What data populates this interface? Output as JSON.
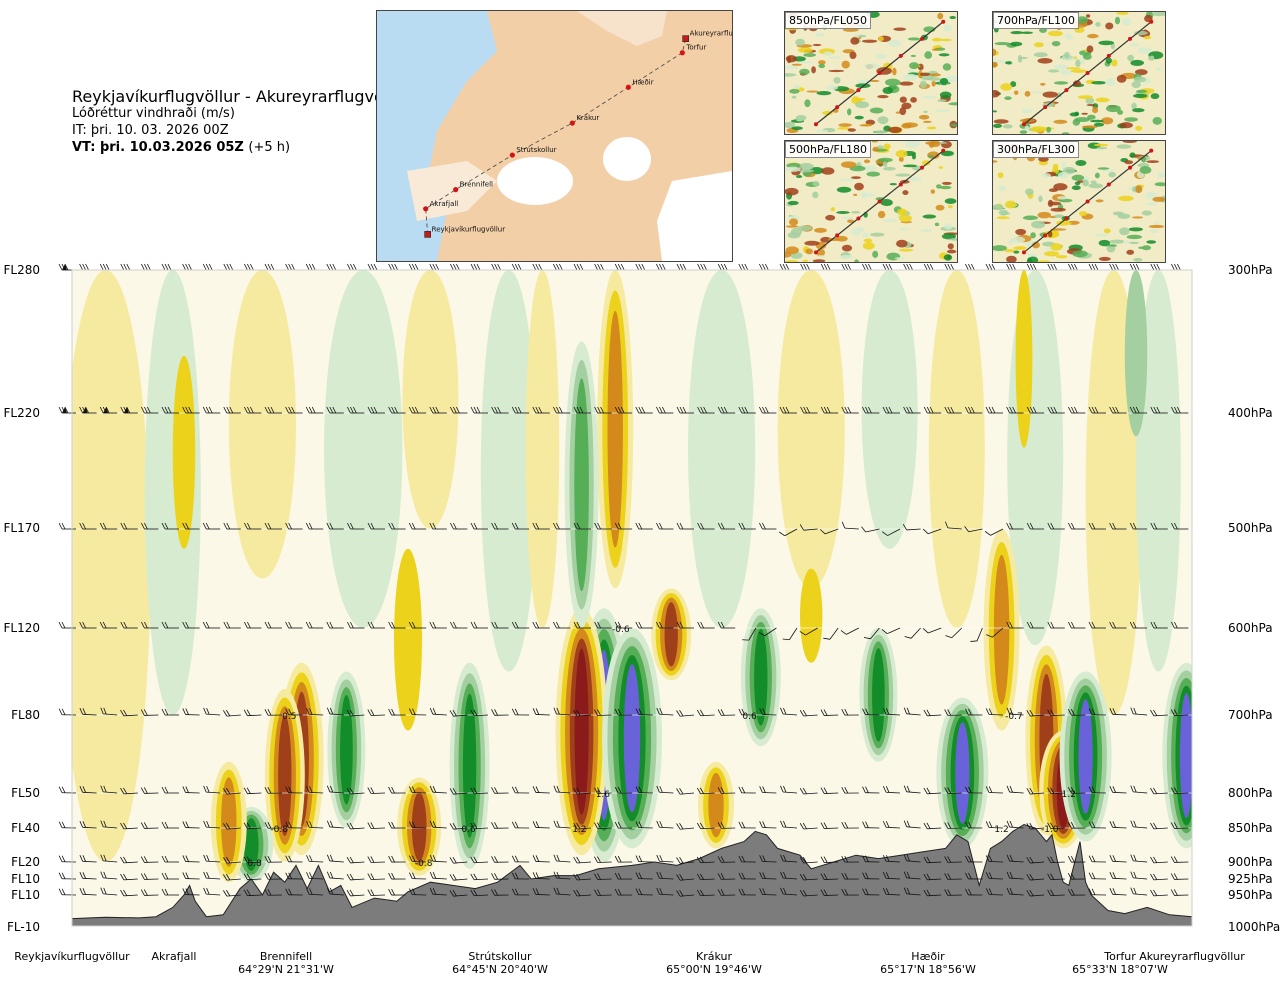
{
  "title": {
    "route": "Reykjavíkurflugvöllur - Akureyrarflugvöllur",
    "variable": "Lóðréttur vindhraði (m/s)",
    "init_time": "IT: þri. 10. 03. 2026 00Z",
    "valid_time": "VT: þri. 10.03.2026 05Z",
    "lead": "(+5 h)"
  },
  "map": {
    "places": [
      {
        "name": "Akureyrarflugvöllur",
        "lon": -18.07,
        "lat": 65.66
      },
      {
        "name": "Torfur",
        "lon": -18.12,
        "lat": 65.55
      },
      {
        "name": "Hæðir",
        "lon": -18.93,
        "lat": 65.28
      },
      {
        "name": "Krákur",
        "lon": -19.77,
        "lat": 65.0
      },
      {
        "name": "Strútskollur",
        "lon": -20.67,
        "lat": 64.75
      },
      {
        "name": "Brennifell",
        "lon": -21.52,
        "lat": 64.48
      },
      {
        "name": "Akrafjall",
        "lon": -21.97,
        "lat": 64.33
      },
      {
        "name": "Reykjavíkurflugvöllur",
        "lon": -21.94,
        "lat": 64.13
      }
    ]
  },
  "levels": [
    {
      "label": "850hPa/FL050"
    },
    {
      "label": "700hPa/FL100"
    },
    {
      "label": "500hPa/FL180"
    },
    {
      "label": "300hPa/FL300"
    }
  ],
  "axes": {
    "left": [
      {
        "fl": "FL280",
        "hpa": 300
      },
      {
        "fl": "FL220",
        "hpa": 400
      },
      {
        "fl": "FL170",
        "hpa": 500
      },
      {
        "fl": "FL120",
        "hpa": 600
      },
      {
        "fl": "FL80",
        "hpa": 700
      },
      {
        "fl": "FL50",
        "hpa": 800
      },
      {
        "fl": "FL40",
        "hpa": 850
      },
      {
        "fl": "FL20",
        "hpa": 900
      },
      {
        "fl": "FL10",
        "hpa": 925
      },
      {
        "fl": "FL10",
        "hpa": 950
      },
      {
        "fl": "FL-10",
        "hpa": 1000
      }
    ],
    "right": [
      "300hPa",
      "400hPa",
      "500hPa",
      "600hPa",
      "700hPa",
      "800hPa",
      "850hPa",
      "900hPa",
      "925hPa",
      "950hPa",
      "1000hPa"
    ]
  },
  "locations": [
    {
      "name": "Reykjavíkurflugvöllur",
      "coord": ""
    },
    {
      "name": "Akrafjall",
      "coord": ""
    },
    {
      "name": "Brennifell",
      "coord": "64°29'N 21°31'W"
    },
    {
      "name": "Strútskollur",
      "coord": "64°45'N 20°40'W"
    },
    {
      "name": "Krákur",
      "coord": "65°00'N 19°46'W"
    },
    {
      "name": "Hæðir",
      "coord": "65°17'N 18°56'W"
    },
    {
      "name": "Torfur",
      "coord": "65°33'N 18°07'W"
    },
    {
      "name": "Akureyrarflugvöllur",
      "coord": ""
    }
  ],
  "chart_data": {
    "type": "heatmap",
    "ylabel": "",
    "xlabel": "",
    "y_scale": "pressure",
    "ylim_hpa": [
      1000,
      300
    ],
    "x_range": [
      0,
      1
    ],
    "colors": {
      "strong_down": "#8b1a1a",
      "down2": "#a0401a",
      "down1": "#d48a1a",
      "weak_down": "#ecd21a",
      "faint_down": "#f6eaa0",
      "neutral": "#fbf8e8",
      "faint_up": "#d6ebd0",
      "weak_up": "#a4cfa0",
      "up1": "#56ae56",
      "up2": "#138c2a",
      "strong_up": "#6a62d8",
      "terrain": "#7c7c7c"
    },
    "cells": [
      {
        "x": 0.205,
        "p_top": 640,
        "p_bottom": 890,
        "value": -0.8
      },
      {
        "x": 0.19,
        "p_top": 670,
        "p_bottom": 900,
        "value": -0.6
      },
      {
        "x": 0.245,
        "p_top": 650,
        "p_bottom": 850,
        "value": 0.5
      },
      {
        "x": 0.16,
        "p_top": 820,
        "p_bottom": 930,
        "value": 0.8
      },
      {
        "x": 0.14,
        "p_top": 760,
        "p_bottom": 930,
        "value": -0.4
      },
      {
        "x": 0.31,
        "p_top": 780,
        "p_bottom": 920,
        "value": -0.8
      },
      {
        "x": 0.355,
        "p_top": 640,
        "p_bottom": 910,
        "value": 0.6
      },
      {
        "x": 0.475,
        "p_top": 580,
        "p_bottom": 900,
        "value": 1.2
      },
      {
        "x": 0.455,
        "p_top": 580,
        "p_bottom": 890,
        "value": -1.2
      },
      {
        "x": 0.5,
        "p_top": 600,
        "p_bottom": 880,
        "value": 1.6
      },
      {
        "x": 0.535,
        "p_top": 560,
        "p_bottom": 660,
        "value": -0.6
      },
      {
        "x": 0.485,
        "p_top": 300,
        "p_bottom": 560,
        "value": -0.4
      },
      {
        "x": 0.455,
        "p_top": 350,
        "p_bottom": 600,
        "value": 0.3
      },
      {
        "x": 0.575,
        "p_top": 760,
        "p_bottom": 880,
        "value": -0.4
      },
      {
        "x": 0.615,
        "p_top": 580,
        "p_bottom": 740,
        "value": 0.6
      },
      {
        "x": 0.72,
        "p_top": 600,
        "p_bottom": 760,
        "value": 0.5
      },
      {
        "x": 0.795,
        "p_top": 680,
        "p_bottom": 880,
        "value": 1.2
      },
      {
        "x": 0.83,
        "p_top": 500,
        "p_bottom": 720,
        "value": -0.4
      },
      {
        "x": 0.87,
        "p_top": 620,
        "p_bottom": 860,
        "value": -0.7
      },
      {
        "x": 0.885,
        "p_top": 720,
        "p_bottom": 880,
        "value": -1.0
      },
      {
        "x": 0.905,
        "p_top": 650,
        "p_bottom": 870,
        "value": 1.2
      },
      {
        "x": 0.995,
        "p_top": 640,
        "p_bottom": 880,
        "value": 1.0
      }
    ],
    "labels": [
      {
        "text": "-0.8",
        "x": 0.185,
        "p": 850
      },
      {
        "text": "0.5",
        "x": 0.194,
        "p": 700
      },
      {
        "text": "0.8",
        "x": 0.163,
        "p": 900
      },
      {
        "text": "-0.8",
        "x": 0.314,
        "p": 900
      },
      {
        "text": "0.6",
        "x": 0.354,
        "p": 850
      },
      {
        "text": "1.2",
        "x": 0.453,
        "p": 850
      },
      {
        "text": "1.6",
        "x": 0.474,
        "p": 800
      },
      {
        "text": "-0.6",
        "x": 0.49,
        "p": 600
      },
      {
        "text": "0.6",
        "x": 0.605,
        "p": 700
      },
      {
        "text": "1.2",
        "x": 0.83,
        "p": 850
      },
      {
        "text": "-0.7",
        "x": 0.841,
        "p": 700
      },
      {
        "text": "1.2",
        "x": 0.89,
        "p": 800
      },
      {
        "text": "-1.0",
        "x": 0.873,
        "p": 850
      }
    ],
    "terrain_surface_hpa": [
      [
        0,
        988
      ],
      [
        0.03,
        986
      ],
      [
        0.06,
        987
      ],
      [
        0.075,
        985
      ],
      [
        0.09,
        970
      ],
      [
        0.1,
        950
      ],
      [
        0.105,
        935
      ],
      [
        0.11,
        960
      ],
      [
        0.12,
        985
      ],
      [
        0.135,
        982
      ],
      [
        0.15,
        940
      ],
      [
        0.16,
        925
      ],
      [
        0.17,
        950
      ],
      [
        0.18,
        915
      ],
      [
        0.19,
        930
      ],
      [
        0.2,
        905
      ],
      [
        0.21,
        940
      ],
      [
        0.22,
        905
      ],
      [
        0.23,
        945
      ],
      [
        0.24,
        935
      ],
      [
        0.25,
        970
      ],
      [
        0.27,
        955
      ],
      [
        0.29,
        960
      ],
      [
        0.3,
        945
      ],
      [
        0.32,
        930
      ],
      [
        0.34,
        935
      ],
      [
        0.36,
        940
      ],
      [
        0.38,
        930
      ],
      [
        0.4,
        905
      ],
      [
        0.41,
        925
      ],
      [
        0.43,
        920
      ],
      [
        0.45,
        920
      ],
      [
        0.47,
        910
      ],
      [
        0.5,
        905
      ],
      [
        0.52,
        900
      ],
      [
        0.54,
        905
      ],
      [
        0.56,
        895
      ],
      [
        0.58,
        880
      ],
      [
        0.6,
        870
      ],
      [
        0.61,
        855
      ],
      [
        0.62,
        860
      ],
      [
        0.63,
        880
      ],
      [
        0.65,
        890
      ],
      [
        0.66,
        910
      ],
      [
        0.68,
        900
      ],
      [
        0.7,
        890
      ],
      [
        0.72,
        895
      ],
      [
        0.74,
        890
      ],
      [
        0.76,
        885
      ],
      [
        0.78,
        880
      ],
      [
        0.79,
        860
      ],
      [
        0.8,
        870
      ],
      [
        0.81,
        935
      ],
      [
        0.82,
        880
      ],
      [
        0.83,
        870
      ],
      [
        0.84,
        855
      ],
      [
        0.85,
        845
      ],
      [
        0.86,
        850
      ],
      [
        0.87,
        870
      ],
      [
        0.875,
        860
      ],
      [
        0.88,
        900
      ],
      [
        0.885,
        930
      ],
      [
        0.89,
        935
      ],
      [
        0.9,
        870
      ],
      [
        0.905,
        930
      ],
      [
        0.91,
        950
      ],
      [
        0.925,
        975
      ],
      [
        0.94,
        980
      ],
      [
        0.96,
        970
      ],
      [
        0.98,
        982
      ],
      [
        1,
        985
      ]
    ],
    "wind_levels_hpa": [
      300,
      400,
      500,
      600,
      700,
      800,
      850,
      900,
      925,
      950
    ]
  }
}
